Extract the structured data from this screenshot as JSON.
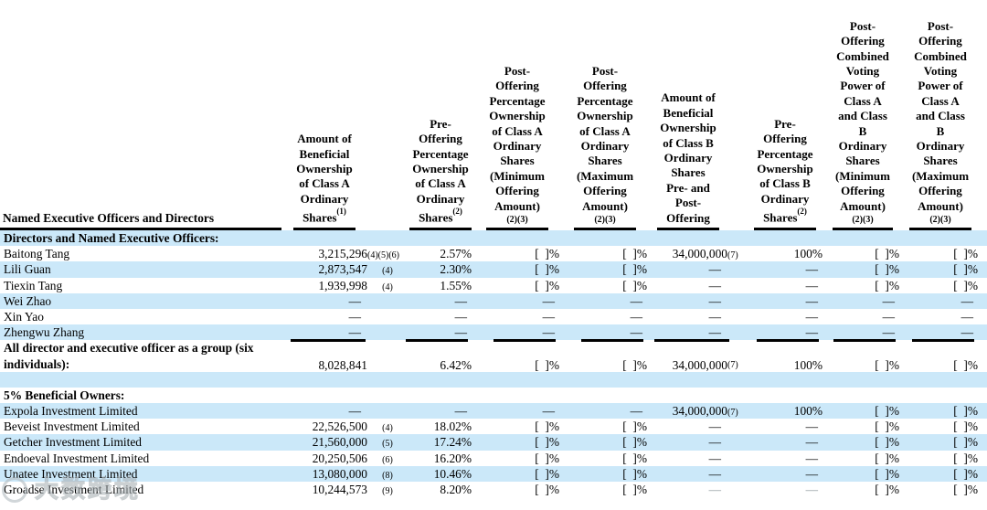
{
  "colors": {
    "stripe_blue": "#cbe8f9",
    "text": "#000000",
    "rule_black": "#000000",
    "watermark_gray": "#b4bcc0"
  },
  "header": {
    "first_column": "Named Executive Officers and Directors",
    "columns": [
      {
        "id": "class-a-beneficial-amount",
        "lines": [
          "Amount of",
          "Beneficial",
          "Ownership",
          "of Class A",
          "Ordinary",
          [
            "Shares",
            "(1)"
          ]
        ]
      },
      {
        "id": "class-a-pre-offering-pct",
        "lines": [
          "Pre-",
          "Offering",
          "Percentage",
          "Ownership",
          "of Class A",
          "Ordinary",
          [
            "Shares",
            "(2)"
          ]
        ]
      },
      {
        "id": "class-a-post-offering-pct-min",
        "lines": [
          "Post-",
          "Offering",
          "Percentage",
          "Ownership",
          "of Class A",
          "Ordinary",
          "Shares",
          "(Minimum",
          "Offering",
          "Amount)",
          {
            "small": "(2)(3)"
          }
        ]
      },
      {
        "id": "class-a-post-offering-pct-max",
        "lines": [
          "Post-",
          "Offering",
          "Percentage",
          "Ownership",
          "of Class A",
          "Ordinary",
          "Shares",
          "(Maximum",
          "Offering",
          "Amount)",
          {
            "small": "(2)(3)"
          }
        ]
      },
      {
        "id": "class-b-beneficial-amount",
        "lines": [
          "Amount of",
          "Beneficial",
          "Ownership",
          "of Class B",
          "Ordinary",
          "Shares",
          "Pre- and",
          "Post-",
          "Offering"
        ]
      },
      {
        "id": "class-b-pre-offering-pct",
        "lines": [
          "Pre-",
          "Offering",
          "Percentage",
          "Ownership",
          "of Class B",
          "Ordinary",
          [
            "Shares",
            "(2)"
          ]
        ]
      },
      {
        "id": "combined-voting-power-min",
        "lines": [
          "Post-",
          "Offering",
          "Combined",
          "Voting",
          "Power of",
          "Class A",
          "and Class",
          "B",
          "Ordinary",
          "Shares",
          "(Minimum",
          "Offering",
          "Amount)",
          {
            "small": "(2)(3)"
          }
        ]
      },
      {
        "id": "combined-voting-power-max",
        "lines": [
          "Post-",
          "Offering",
          "Combined",
          "Voting",
          "Power of",
          "Class A",
          "and Class",
          "B",
          "Ordinary",
          "Shares",
          "(Maximum",
          "Offering",
          "Amount)",
          {
            "small": "(2)(3)"
          }
        ]
      }
    ]
  },
  "rows": [
    {
      "type": "section",
      "label": "Directors and Named Executive Officers:",
      "shaded": true
    },
    {
      "type": "data",
      "name": "Baitong Tang",
      "shaded": false,
      "cells": [
        {
          "v": "3,215,296",
          "fn": "(4)(5)(6)",
          "fn_inline": true
        },
        {
          "v": "2.57%"
        },
        {
          "v": "[  ]%"
        },
        {
          "v": "[  ]%"
        },
        {
          "v": "34,000,000",
          "fn": "(7)",
          "fn_inline": true
        },
        {
          "v": "100%"
        },
        {
          "v": "[  ]%"
        },
        {
          "v": "[  ]%"
        }
      ]
    },
    {
      "type": "data",
      "name": "Lili Guan",
      "shaded": true,
      "cells": [
        {
          "v": "2,873,547",
          "fn": "(4)"
        },
        {
          "v": "2.30%"
        },
        {
          "v": "[  ]%"
        },
        {
          "v": "[  ]%"
        },
        {
          "v": "—"
        },
        {
          "v": "—"
        },
        {
          "v": "[  ]%"
        },
        {
          "v": "[  ]%"
        }
      ]
    },
    {
      "type": "data",
      "name": "Tiexin Tang",
      "shaded": false,
      "cells": [
        {
          "v": "1,939,998",
          "fn": "(4)"
        },
        {
          "v": "1.55%"
        },
        {
          "v": "[  ]%"
        },
        {
          "v": "[  ]%"
        },
        {
          "v": "—"
        },
        {
          "v": "—"
        },
        {
          "v": "[  ]%"
        },
        {
          "v": "[  ]%"
        }
      ]
    },
    {
      "type": "data",
      "name": "Wei Zhao",
      "shaded": true,
      "cells": [
        {
          "v": "—"
        },
        {
          "v": "—"
        },
        {
          "v": "—"
        },
        {
          "v": "—"
        },
        {
          "v": "—"
        },
        {
          "v": "—"
        },
        {
          "v": "—"
        },
        {
          "v": "—"
        }
      ]
    },
    {
      "type": "data",
      "name": "Xin Yao",
      "shaded": false,
      "cells": [
        {
          "v": "—"
        },
        {
          "v": "—"
        },
        {
          "v": "—"
        },
        {
          "v": "—"
        },
        {
          "v": "—"
        },
        {
          "v": "—"
        },
        {
          "v": "—"
        },
        {
          "v": "—"
        }
      ]
    },
    {
      "type": "data",
      "name": "Zhengwu Zhang",
      "shaded": true,
      "rule_below": true,
      "cells": [
        {
          "v": "—"
        },
        {
          "v": "—"
        },
        {
          "v": "—"
        },
        {
          "v": "—"
        },
        {
          "v": "—"
        },
        {
          "v": "—"
        },
        {
          "v": "—"
        },
        {
          "v": "—"
        }
      ]
    },
    {
      "type": "group",
      "name_lines": [
        "All director and executive officer as a group (six",
        "individuals):"
      ],
      "shaded": false,
      "cells": [
        {
          "v": "8,028,841"
        },
        {
          "v": "6.42%"
        },
        {
          "v": "[  ]%"
        },
        {
          "v": "[  ]%"
        },
        {
          "v": "34,000,000",
          "fn": "(7)",
          "fn_inline": true
        },
        {
          "v": "100%"
        },
        {
          "v": "[  ]%"
        },
        {
          "v": "[  ]%"
        }
      ]
    },
    {
      "type": "blank",
      "shaded": true
    },
    {
      "type": "section",
      "label": "5% Beneficial Owners:",
      "shaded": false
    },
    {
      "type": "data",
      "name": "Expola Investment Limited",
      "shaded": true,
      "cells": [
        {
          "v": "—"
        },
        {
          "v": "—"
        },
        {
          "v": "—"
        },
        {
          "v": "—"
        },
        {
          "v": "34,000,000",
          "fn": "(7)",
          "fn_inline": true
        },
        {
          "v": "100%"
        },
        {
          "v": "[  ]%"
        },
        {
          "v": "[  ]%"
        }
      ]
    },
    {
      "type": "data",
      "name": "Beveist Investment Limited",
      "shaded": false,
      "cells": [
        {
          "v": "22,526,500",
          "fn": "(4)"
        },
        {
          "v": "18.02%"
        },
        {
          "v": "[  ]%"
        },
        {
          "v": "[  ]%"
        },
        {
          "v": "—"
        },
        {
          "v": "—"
        },
        {
          "v": "[  ]%"
        },
        {
          "v": "[  ]%"
        }
      ]
    },
    {
      "type": "data",
      "name": "Getcher Investment Limited",
      "shaded": true,
      "cells": [
        {
          "v": "21,560,000",
          "fn": "(5)"
        },
        {
          "v": "17.24%"
        },
        {
          "v": "[  ]%"
        },
        {
          "v": "[  ]%"
        },
        {
          "v": "—"
        },
        {
          "v": "—"
        },
        {
          "v": "[  ]%"
        },
        {
          "v": "[  ]%"
        }
      ]
    },
    {
      "type": "data",
      "name": "Endoeval Investment Limited",
      "shaded": false,
      "cells": [
        {
          "v": "20,250,506",
          "fn": "(6)"
        },
        {
          "v": "16.20%"
        },
        {
          "v": "[  ]%"
        },
        {
          "v": "[  ]%"
        },
        {
          "v": "—"
        },
        {
          "v": "—"
        },
        {
          "v": "[  ]%"
        },
        {
          "v": "[  ]%"
        }
      ]
    },
    {
      "type": "data",
      "name": "Unatee Investment Limited",
      "shaded": true,
      "cells": [
        {
          "v": "13,080,000",
          "fn": "(8)"
        },
        {
          "v": "10.46%"
        },
        {
          "v": "[  ]%"
        },
        {
          "v": "[  ]%"
        },
        {
          "v": "—"
        },
        {
          "v": "—"
        },
        {
          "v": "[  ]%"
        },
        {
          "v": "[  ]%"
        }
      ]
    },
    {
      "type": "data",
      "name": "Groadse Investment Limited",
      "shaded": false,
      "cells": [
        {
          "v": "10,244,573",
          "fn": "(9)"
        },
        {
          "v": "8.20%"
        },
        {
          "v": "[  ]%"
        },
        {
          "v": "[  ]%"
        },
        {
          "v": "—",
          "muted": true
        },
        {
          "v": "—",
          "muted": true
        },
        {
          "v": "[  ]%"
        },
        {
          "v": "[  ]%"
        }
      ]
    }
  ],
  "watermark": {
    "text": "大数跨境"
  }
}
